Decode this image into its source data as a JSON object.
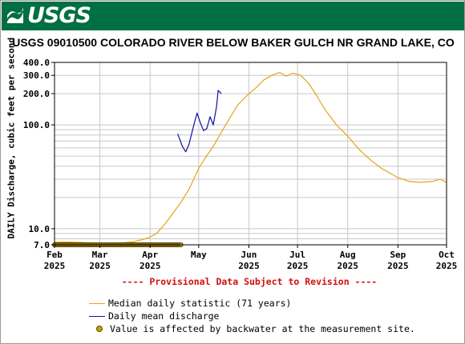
{
  "banner": {
    "logo_text": "USGS",
    "color": "#006f41"
  },
  "title": "USGS 09010500 COLORADO RIVER BELOW BAKER GULCH NR GRAND LAKE, CO",
  "provisional_note": "---- Provisional Data Subject to Revision ----",
  "legend": [
    {
      "label": "Median daily statistic (71 years)",
      "color": "#e8a317",
      "kind": "line"
    },
    {
      "label": "Daily mean discharge",
      "color": "#1010a0",
      "kind": "line"
    },
    {
      "label": "Value is affected by backwater at the measurement site.",
      "color": "#c8a000",
      "kind": "dot"
    }
  ],
  "chart_data": {
    "type": "line",
    "title": "USGS 09010500 COLORADO RIVER BELOW BAKER GULCH NR GRAND LAKE, CO",
    "ylabel": "DAILY Discharge, cubic feet per second",
    "xlabel": "",
    "y_scale": "log",
    "ylim": [
      7.0,
      400.0
    ],
    "xlim": [
      "2025-02-01",
      "2025-10-01"
    ],
    "grid": true,
    "y_ticks": [
      {
        "value": 7,
        "label": "7.0"
      },
      {
        "value": 10,
        "label": "10.0"
      },
      {
        "value": 100,
        "label": "100.0"
      },
      {
        "value": 200,
        "label": "200.0"
      },
      {
        "value": 300,
        "label": "300.0"
      },
      {
        "value": 400,
        "label": "400.0"
      }
    ],
    "x_ticks": [
      {
        "date": "2025-02-01",
        "month": "Feb",
        "year": "2025"
      },
      {
        "date": "2025-03-01",
        "month": "Mar",
        "year": "2025"
      },
      {
        "date": "2025-04-01",
        "month": "Apr",
        "year": "2025"
      },
      {
        "date": "2025-05-01",
        "month": "May",
        "year": ""
      },
      {
        "date": "2025-06-01",
        "month": "Jun",
        "year": "2025"
      },
      {
        "date": "2025-07-01",
        "month": "Jul",
        "year": "2025"
      },
      {
        "date": "2025-08-01",
        "month": "Aug",
        "year": "2025"
      },
      {
        "date": "2025-09-01",
        "month": "Sep",
        "year": "2025"
      },
      {
        "date": "2025-10-01",
        "month": "Oct",
        "year": "2025"
      }
    ],
    "series": [
      {
        "name": "Median daily statistic (71 years)",
        "color": "#e8a317",
        "points": [
          [
            "2025-02-01",
            7.4
          ],
          [
            "2025-02-08",
            7.45
          ],
          [
            "2025-02-15",
            7.4
          ],
          [
            "2025-02-22",
            7.3
          ],
          [
            "2025-03-01",
            7.2
          ],
          [
            "2025-03-08",
            7.2
          ],
          [
            "2025-03-15",
            7.3
          ],
          [
            "2025-03-22",
            7.5
          ],
          [
            "2025-03-29",
            8.0
          ],
          [
            "2025-04-01",
            8.3
          ],
          [
            "2025-04-05",
            9.0
          ],
          [
            "2025-04-10",
            11.0
          ],
          [
            "2025-04-15",
            14.0
          ],
          [
            "2025-04-20",
            18.0
          ],
          [
            "2025-04-25",
            24.0
          ],
          [
            "2025-05-01",
            38.0
          ],
          [
            "2025-05-05",
            48.0
          ],
          [
            "2025-05-10",
            62.0
          ],
          [
            "2025-05-15",
            85.0
          ],
          [
            "2025-05-20",
            115.0
          ],
          [
            "2025-05-25",
            155.0
          ],
          [
            "2025-06-01",
            200.0
          ],
          [
            "2025-06-05",
            225.0
          ],
          [
            "2025-06-10",
            270.0
          ],
          [
            "2025-06-15",
            300.0
          ],
          [
            "2025-06-20",
            320.0
          ],
          [
            "2025-06-24",
            295.0
          ],
          [
            "2025-06-28",
            315.0
          ],
          [
            "2025-07-03",
            300.0
          ],
          [
            "2025-07-08",
            250.0
          ],
          [
            "2025-07-13",
            190.0
          ],
          [
            "2025-07-18",
            140.0
          ],
          [
            "2025-07-25",
            100.0
          ],
          [
            "2025-08-01",
            78.0
          ],
          [
            "2025-08-08",
            58.0
          ],
          [
            "2025-08-15",
            46.0
          ],
          [
            "2025-08-22",
            38.0
          ],
          [
            "2025-08-29",
            33.0
          ],
          [
            "2025-09-01",
            31.0
          ],
          [
            "2025-09-08",
            28.5
          ],
          [
            "2025-09-15",
            28.0
          ],
          [
            "2025-09-22",
            28.5
          ],
          [
            "2025-09-27",
            30.0
          ],
          [
            "2025-10-01",
            28.0
          ]
        ]
      },
      {
        "name": "Daily mean discharge",
        "color": "#1010a0",
        "points": [
          [
            "2025-04-18",
            82.0
          ],
          [
            "2025-04-21",
            62.0
          ],
          [
            "2025-04-23",
            55.0
          ],
          [
            "2025-04-25",
            65.0
          ],
          [
            "2025-04-28",
            100.0
          ],
          [
            "2025-04-30",
            130.0
          ],
          [
            "2025-05-02",
            105.0
          ],
          [
            "2025-05-04",
            88.0
          ],
          [
            "2025-05-06",
            92.0
          ],
          [
            "2025-05-08",
            120.0
          ],
          [
            "2025-05-10",
            100.0
          ],
          [
            "2025-05-12",
            150.0
          ],
          [
            "2025-05-13",
            215.0
          ],
          [
            "2025-05-15",
            200.0
          ]
        ]
      }
    ],
    "backwater_markers": {
      "start": "2025-02-01",
      "end": "2025-04-20",
      "value": 7.0
    }
  }
}
